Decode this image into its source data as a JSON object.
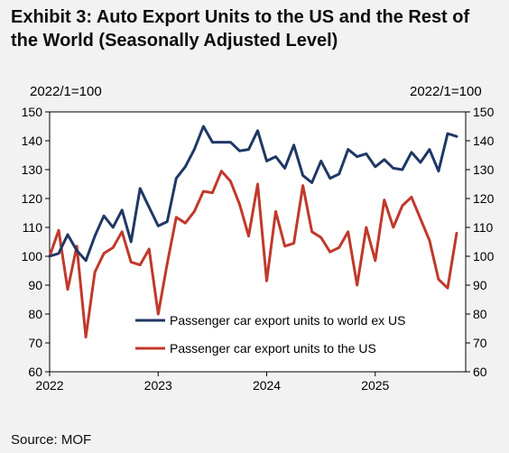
{
  "header": {
    "title": "Exhibit 3: Auto Export Units to the US and the Rest of the World (Seasonally Adjusted Level)",
    "unit_left": "2022/1=100",
    "unit_right": "2022/1=100"
  },
  "footer": {
    "source": "Source: MOF"
  },
  "colors": {
    "world_series": "#1f3864",
    "us_series": "#c0392b",
    "plot_bg": "#ffffff",
    "page_bg": "#f2f2f2"
  },
  "chart_data": {
    "type": "line",
    "title": "Exhibit 3: Auto Export Units to the US and the Rest of the World (Seasonally Adjusted Level)",
    "ylabel": "2022/1=100",
    "ylabel_right": "2022/1=100",
    "ylim": [
      60,
      150
    ],
    "yticks": [
      60,
      70,
      80,
      90,
      100,
      110,
      120,
      130,
      140,
      150
    ],
    "xlim": [
      0,
      46
    ],
    "x_tick_labels": [
      {
        "x": 0,
        "label": "2022"
      },
      {
        "x": 12,
        "label": "2023"
      },
      {
        "x": 24,
        "label": "2024"
      },
      {
        "x": 36,
        "label": "2025"
      }
    ],
    "grid": false,
    "legend_position": "bottom-left inside plot",
    "x": [
      0,
      1,
      2,
      3,
      4,
      5,
      6,
      7,
      8,
      9,
      10,
      11,
      12,
      13,
      14,
      15,
      16,
      17,
      18,
      19,
      20,
      21,
      22,
      23,
      24,
      25,
      26,
      27,
      28,
      29,
      30,
      31,
      32,
      33,
      34,
      35,
      36,
      37,
      38,
      39,
      40,
      41,
      42,
      43,
      44,
      45
    ],
    "x_label_note": "monthly, 2022/1 to 2025/10",
    "series": [
      {
        "name": "Passenger car export units to world ex US",
        "color": "#1f3864",
        "values": [
          100,
          101,
          107.5,
          102,
          98.5,
          107,
          114,
          110,
          116,
          105,
          123.5,
          117,
          110.5,
          112,
          127,
          131,
          137,
          145,
          139.5,
          139.5,
          139.5,
          136.5,
          137,
          143.5,
          133,
          134.5,
          130.5,
          138.5,
          128,
          125.5,
          133,
          127,
          128.5,
          137,
          134.5,
          135.5,
          131,
          133.5,
          130.5,
          130,
          136,
          132.5,
          137,
          129.5,
          142.5,
          141.5
        ]
      },
      {
        "name": "Passenger car export units to the US",
        "color": "#c0392b",
        "values": [
          100,
          109,
          88.5,
          103.5,
          72,
          94.5,
          101,
          103,
          108.5,
          98,
          97,
          102.5,
          80,
          97.5,
          113.5,
          111.5,
          115.5,
          122.5,
          122,
          129.5,
          126,
          118,
          107,
          125,
          91.5,
          115.5,
          103.5,
          104.5,
          124.5,
          108.5,
          106.5,
          101.5,
          103,
          108.5,
          90,
          110,
          98.5,
          119.5,
          110,
          117.5,
          120.5,
          113,
          105.5,
          92,
          89,
          108
        ]
      }
    ]
  }
}
